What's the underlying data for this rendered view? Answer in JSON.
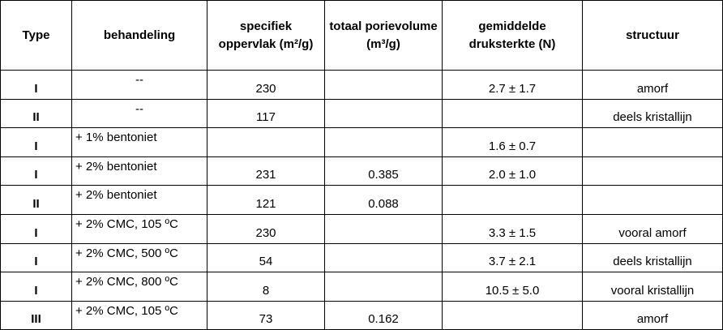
{
  "table": {
    "header": [
      "Type",
      "behandeling",
      "specifiek oppervlak (m²/g)",
      "totaal porievolume (m³/g)",
      "gemiddelde druksterkte (N)",
      "structuur"
    ],
    "rows": [
      [
        "I",
        "--",
        "230",
        null,
        "2.7 ± 1.7",
        "amorf"
      ],
      [
        "II",
        "--",
        "117",
        null,
        null,
        "deels kristallijn"
      ],
      [
        "I",
        "+ 1% bentoniet",
        null,
        null,
        "1.6 ± 0.7",
        null
      ],
      [
        "I",
        "+ 2% bentoniet",
        "231",
        "0.385",
        "2.0 ± 1.0",
        null
      ],
      [
        "II",
        "+ 2% bentoniet",
        "121",
        "0.088",
        null,
        null
      ],
      [
        "I",
        "+ 2% CMC, 105 ºC",
        "230",
        null,
        "3.3 ± 1.5",
        "vooral amorf"
      ],
      [
        "I",
        "+ 2% CMC, 500 ºC",
        "54",
        null,
        "3.7 ± 2.1",
        "deels kristallijn"
      ],
      [
        "I",
        "+ 2% CMC, 800 ºC",
        "8",
        null,
        "10.5 ± 5.0",
        "vooral kristallijn"
      ],
      [
        "III",
        "+ 2% CMC, 105 ºC",
        "73",
        "0.162",
        null,
        "amorf"
      ]
    ]
  }
}
